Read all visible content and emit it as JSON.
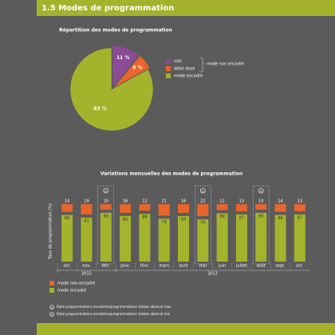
{
  "header": {
    "title": "1.5 Modes de programmation"
  },
  "chart_data": [
    {
      "type": "pie",
      "title": "Répartition des modes de programmation",
      "categories": [
        "mfh",
        "débit dosé",
        "mode encadré"
      ],
      "values": [
        11,
        6,
        83
      ],
      "value_labels": [
        "11 %",
        "6 %",
        "83 %"
      ],
      "colors": [
        "#8b4b95",
        "#e8652b",
        "#a4b32c"
      ],
      "legend_group_label": "mode non encadré"
    },
    {
      "type": "stacked-bar",
      "title": "Variations mensuelles des modes de programmation",
      "y_label": "Taux de programmation (%)",
      "categories": [
        "oct.",
        "nov.",
        "déc.",
        "janv.",
        "févr.",
        "mars",
        "avril",
        "mai",
        "juin",
        "juillet",
        "août",
        "sept.",
        "oct."
      ],
      "x_groups": [
        "2012",
        "2013"
      ],
      "series": [
        {
          "name": "mode non-encadré",
          "color": "#e8652b",
          "values": [
            14,
            19,
            10,
            16,
            12,
            21,
            16,
            22,
            11,
            13,
            10,
            14,
            13
          ]
        },
        {
          "name": "mode encadré",
          "color": "#a4b32c",
          "values": [
            86,
            81,
            90,
            84,
            88,
            79,
            84,
            78,
            89,
            87,
            90,
            86,
            87
          ]
        }
      ]
    }
  ],
  "footnotes": [
    "Ratio programmations encadrées/programmations totales observé max",
    "Ratio programmations encadrées/programmations totales observé min"
  ]
}
